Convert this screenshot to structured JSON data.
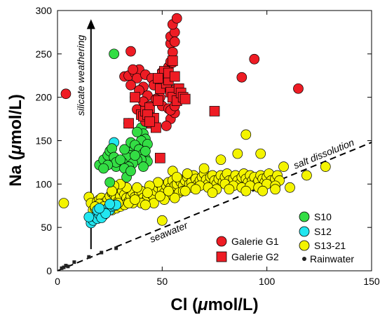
{
  "chart_data": {
    "type": "scatter",
    "xlabel_prefix": "Cl (",
    "xlabel_mu": "μ",
    "xlabel_suffix": "mol/L)",
    "ylabel_prefix": "Na (",
    "ylabel_mu": "μ",
    "ylabel_suffix": "mol/L)",
    "xlim": [
      0,
      150
    ],
    "ylim": [
      0,
      300
    ],
    "xticks": [
      0,
      50,
      100,
      150
    ],
    "yticks": [
      0,
      50,
      100,
      150,
      200,
      250,
      300
    ],
    "annotations": {
      "silicate": "silicate weathering",
      "salt": "salt dissolution",
      "seawater": "seawater"
    },
    "legend_position": "bottom-right",
    "colors": {
      "g1": "#ee1c24",
      "g2": "#ee1c24",
      "s10": "#33dd44",
      "s12": "#22e6f0",
      "s13": "#f4f400",
      "rain": "#222222"
    },
    "series": [
      {
        "name": "Galerie G1",
        "key": "g1",
        "marker": "circle",
        "points": [
          [
            4,
            204
          ],
          [
            35,
            253
          ],
          [
            32,
            224
          ],
          [
            34,
            225
          ],
          [
            37,
            228
          ],
          [
            39,
            232
          ],
          [
            38,
            222
          ],
          [
            42,
            226
          ],
          [
            45,
            222
          ],
          [
            48,
            218
          ],
          [
            50,
            229
          ],
          [
            51,
            224
          ],
          [
            35,
            214
          ],
          [
            37,
            200
          ],
          [
            41,
            212
          ],
          [
            43,
            202
          ],
          [
            46,
            214
          ],
          [
            49,
            200
          ],
          [
            52,
            217
          ],
          [
            55,
            208
          ],
          [
            53,
            235
          ],
          [
            54,
            241
          ],
          [
            54,
            262
          ],
          [
            55,
            252
          ],
          [
            54,
            270
          ],
          [
            56,
            275
          ],
          [
            55,
            284
          ],
          [
            57,
            291
          ],
          [
            56,
            264
          ],
          [
            55,
            240
          ],
          [
            52,
            212
          ],
          [
            47,
            198
          ],
          [
            50,
            190
          ],
          [
            53,
            187
          ],
          [
            54,
            175
          ],
          [
            52,
            167
          ],
          [
            56,
            182
          ],
          [
            36,
            232
          ],
          [
            39,
            208
          ],
          [
            41,
            195
          ],
          [
            40,
            182
          ],
          [
            43,
            178
          ],
          [
            46,
            172
          ],
          [
            88,
            223
          ],
          [
            94,
            244
          ],
          [
            115,
            210
          ],
          [
            42,
            172
          ],
          [
            44,
            176
          ],
          [
            38,
            186
          ],
          [
            58,
            205
          ],
          [
            57,
            202
          ],
          [
            60,
            200
          ],
          [
            54,
            185
          ],
          [
            56,
            190
          ],
          [
            44,
            190
          ]
        ]
      },
      {
        "name": "Galerie G2",
        "key": "g2",
        "marker": "square",
        "points": [
          [
            34,
            170
          ],
          [
            37,
            200
          ],
          [
            40,
            180
          ],
          [
            41,
            178
          ],
          [
            42,
            184
          ],
          [
            44,
            188
          ],
          [
            45,
            170
          ],
          [
            46,
            176
          ],
          [
            47,
            165
          ],
          [
            48,
            196
          ],
          [
            49,
            210
          ],
          [
            50,
            226
          ],
          [
            51,
            230
          ],
          [
            52,
            216
          ],
          [
            53,
            220
          ],
          [
            54,
            206
          ],
          [
            55,
            200
          ],
          [
            57,
            196
          ],
          [
            58,
            210
          ],
          [
            59,
            205
          ],
          [
            60,
            200
          ],
          [
            61,
            198
          ],
          [
            75,
            184
          ],
          [
            49,
            130
          ],
          [
            43,
            180
          ],
          [
            44,
            172
          ],
          [
            48,
            222
          ],
          [
            53,
            228
          ],
          [
            55,
            242
          ],
          [
            56,
            224
          ]
        ]
      },
      {
        "name": "S10",
        "key": "s10",
        "marker": "circle",
        "points": [
          [
            27,
            250
          ],
          [
            34,
            170
          ],
          [
            40,
            165
          ],
          [
            41,
            158
          ],
          [
            42,
            152
          ],
          [
            40,
            150
          ],
          [
            38,
            142
          ],
          [
            36,
            138
          ],
          [
            35,
            133
          ],
          [
            33,
            131
          ],
          [
            31,
            125
          ],
          [
            30,
            122
          ],
          [
            28,
            120
          ],
          [
            20,
            122
          ],
          [
            22,
            128
          ],
          [
            24,
            133
          ],
          [
            25,
            138
          ],
          [
            26,
            141
          ],
          [
            27,
            131
          ],
          [
            28,
            125
          ],
          [
            30,
            128
          ],
          [
            32,
            140
          ],
          [
            35,
            148
          ],
          [
            37,
            145
          ],
          [
            39,
            140
          ],
          [
            41,
            135
          ],
          [
            42,
            130
          ],
          [
            43,
            126
          ],
          [
            40,
            128
          ],
          [
            38,
            128
          ],
          [
            36,
            124
          ],
          [
            34,
            120
          ],
          [
            32,
            118
          ],
          [
            25,
            102
          ],
          [
            24,
            122
          ],
          [
            22,
            118
          ],
          [
            38,
            160
          ],
          [
            43,
            146
          ],
          [
            42,
            138
          ],
          [
            33,
            108
          ],
          [
            35,
            115
          ],
          [
            41,
            120
          ],
          [
            37,
            133
          ]
        ]
      },
      {
        "name": "S12",
        "key": "s12",
        "marker": "circle",
        "points": [
          [
            27,
            148
          ],
          [
            16,
            55
          ],
          [
            17,
            58
          ],
          [
            18,
            62
          ],
          [
            19,
            60
          ],
          [
            20,
            65
          ],
          [
            21,
            68
          ],
          [
            22,
            64
          ],
          [
            23,
            70
          ],
          [
            24,
            72
          ],
          [
            25,
            70
          ],
          [
            26,
            74
          ],
          [
            27,
            75
          ],
          [
            28,
            76
          ],
          [
            15,
            62
          ],
          [
            19,
            70
          ],
          [
            21,
            61
          ],
          [
            23,
            66
          ],
          [
            25,
            77
          ],
          [
            20,
            72
          ]
        ]
      },
      {
        "name": "S13-21",
        "key": "s13",
        "marker": "circle",
        "points": [
          [
            3,
            78
          ],
          [
            15,
            85
          ],
          [
            16,
            78
          ],
          [
            17,
            70
          ],
          [
            18,
            72
          ],
          [
            19,
            80
          ],
          [
            20,
            82
          ],
          [
            21,
            84
          ],
          [
            22,
            78
          ],
          [
            23,
            76
          ],
          [
            24,
            82
          ],
          [
            25,
            86
          ],
          [
            26,
            90
          ],
          [
            27,
            88
          ],
          [
            28,
            84
          ],
          [
            29,
            80
          ],
          [
            30,
            86
          ],
          [
            31,
            92
          ],
          [
            32,
            88
          ],
          [
            33,
            84
          ],
          [
            34,
            80
          ],
          [
            35,
            86
          ],
          [
            36,
            90
          ],
          [
            37,
            85
          ],
          [
            38,
            82
          ],
          [
            39,
            88
          ],
          [
            40,
            92
          ],
          [
            41,
            84
          ],
          [
            42,
            80
          ],
          [
            43,
            86
          ],
          [
            44,
            90
          ],
          [
            45,
            88
          ],
          [
            46,
            85
          ],
          [
            47,
            92
          ],
          [
            48,
            96
          ],
          [
            49,
            100
          ],
          [
            50,
            94
          ],
          [
            51,
            90
          ],
          [
            52,
            98
          ],
          [
            53,
            102
          ],
          [
            54,
            96
          ],
          [
            55,
            104
          ],
          [
            56,
            98
          ],
          [
            57,
            100
          ],
          [
            58,
            106
          ],
          [
            59,
            102
          ],
          [
            60,
            98
          ],
          [
            61,
            104
          ],
          [
            62,
            108
          ],
          [
            63,
            100
          ],
          [
            64,
            102
          ],
          [
            65,
            110
          ],
          [
            66,
            106
          ],
          [
            67,
            100
          ],
          [
            68,
            104
          ],
          [
            69,
            108
          ],
          [
            70,
            112
          ],
          [
            71,
            105
          ],
          [
            72,
            100
          ],
          [
            73,
            108
          ],
          [
            74,
            110
          ],
          [
            75,
            104
          ],
          [
            76,
            100
          ],
          [
            77,
            106
          ],
          [
            78,
            110
          ],
          [
            79,
            102
          ],
          [
            80,
            108
          ],
          [
            81,
            112
          ],
          [
            82,
            104
          ],
          [
            83,
            100
          ],
          [
            84,
            106
          ],
          [
            85,
            110
          ],
          [
            86,
            104
          ],
          [
            87,
            100
          ],
          [
            88,
            108
          ],
          [
            89,
            112
          ],
          [
            90,
            106
          ],
          [
            91,
            102
          ],
          [
            92,
            110
          ],
          [
            93,
            104
          ],
          [
            94,
            108
          ],
          [
            95,
            100
          ],
          [
            96,
            104
          ],
          [
            97,
            110
          ],
          [
            98,
            106
          ],
          [
            99,
            102
          ],
          [
            100,
            108
          ],
          [
            101,
            112
          ],
          [
            102,
            104
          ],
          [
            103,
            100
          ],
          [
            104,
            106
          ],
          [
            105,
            110
          ],
          [
            106,
            104
          ],
          [
            108,
            120
          ],
          [
            111,
            96
          ],
          [
            119,
            110
          ],
          [
            128,
            120
          ],
          [
            90,
            157
          ],
          [
            97,
            135
          ],
          [
            86,
            135
          ],
          [
            78,
            128
          ],
          [
            55,
            115
          ],
          [
            62,
            112
          ],
          [
            70,
            118
          ],
          [
            48,
            102
          ],
          [
            44,
            98
          ],
          [
            38,
            96
          ],
          [
            33,
            96
          ],
          [
            30,
            100
          ],
          [
            27,
            98
          ],
          [
            26,
            92
          ],
          [
            50,
            58
          ],
          [
            54,
            88
          ],
          [
            58,
            90
          ],
          [
            46,
            78
          ],
          [
            40,
            78
          ],
          [
            36,
            78
          ],
          [
            20,
            77
          ],
          [
            22,
            74
          ],
          [
            24,
            72
          ],
          [
            26,
            70
          ],
          [
            28,
            72
          ],
          [
            30,
            74
          ],
          [
            32,
            76
          ],
          [
            34,
            78
          ],
          [
            42,
            76
          ],
          [
            51,
            82
          ],
          [
            56,
            84
          ],
          [
            60,
            92
          ],
          [
            64,
            96
          ],
          [
            68,
            98
          ],
          [
            72,
            96
          ],
          [
            76,
            94
          ],
          [
            80,
            100
          ],
          [
            84,
            98
          ],
          [
            88,
            96
          ],
          [
            92,
            98
          ],
          [
            96,
            96
          ],
          [
            100,
            100
          ],
          [
            104,
            98
          ],
          [
            18,
            74
          ],
          [
            23,
            69
          ],
          [
            29,
            78
          ],
          [
            37,
            82
          ],
          [
            43,
            90
          ],
          [
            49,
            86
          ],
          [
            53,
            92
          ],
          [
            57,
            108
          ],
          [
            61,
            92
          ],
          [
            66,
            94
          ],
          [
            74,
            90
          ],
          [
            82,
            94
          ],
          [
            90,
            92
          ],
          [
            98,
            92
          ],
          [
            104,
            94
          ]
        ]
      },
      {
        "name": "Rainwater",
        "key": "rain",
        "marker": "smallsquare",
        "points": [
          [
            2,
            3
          ],
          [
            3,
            4
          ],
          [
            4,
            6
          ],
          [
            5,
            5
          ],
          [
            8,
            10
          ],
          [
            15,
            16
          ],
          [
            21,
            21
          ],
          [
            28,
            26
          ]
        ]
      }
    ],
    "arrow": {
      "x": 16,
      "y_start": 25,
      "y_end": 290
    },
    "line": {
      "x1": 0,
      "y1": 0,
      "x2": 150,
      "y2": 148
    }
  }
}
